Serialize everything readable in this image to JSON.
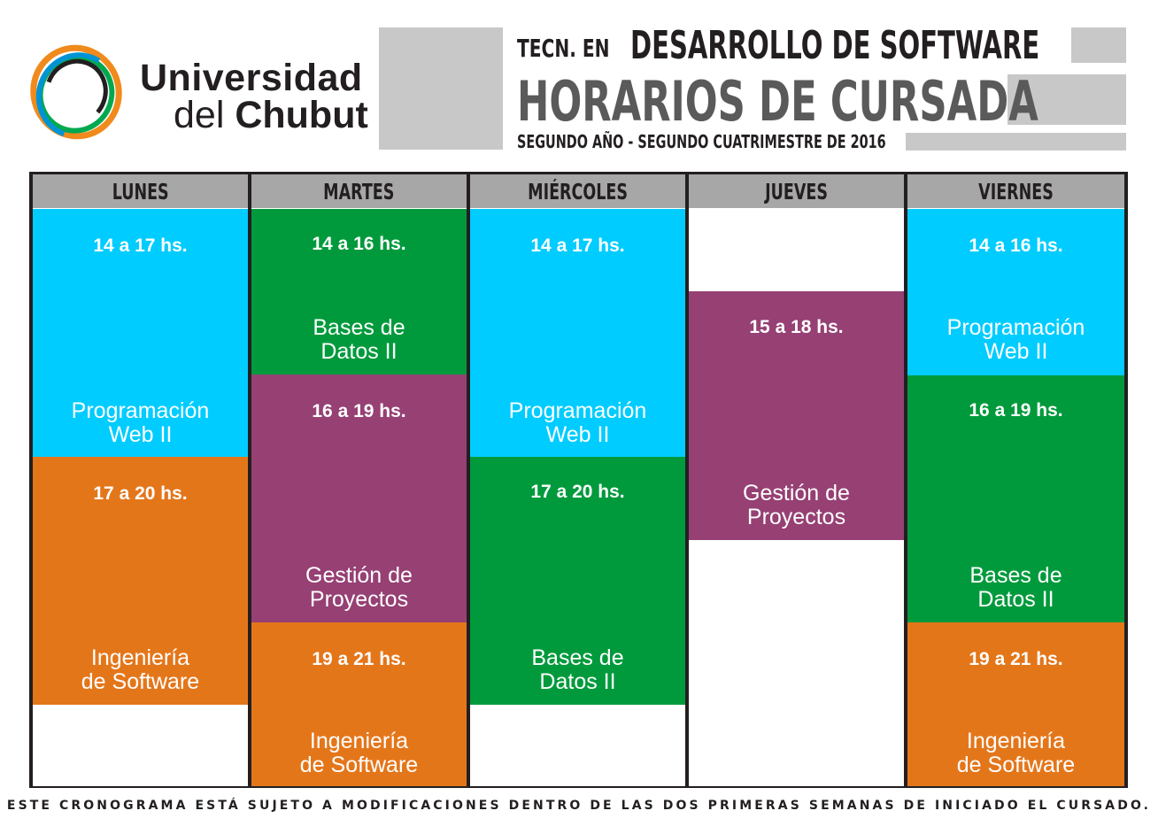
{
  "logo": {
    "line1": "Universidad",
    "line2_a": "del ",
    "line2_b": "Chubut"
  },
  "header": {
    "prefix": "TECN. EN",
    "career": "DESARROLLO DE SOFTWARE",
    "title": "HORARIOS DE CURSADA",
    "subtitle": "SEGUNDO AÑO - SEGUNDO CUATRIMESTRE DE 2016"
  },
  "colors": {
    "cyan": "#00ccff",
    "green": "#009a3c",
    "purple": "#964074",
    "orange": "#e4761a",
    "header_gray": "#a7a7a7"
  },
  "days": [
    {
      "name": "LUNES",
      "blocks": [
        {
          "time": "14 a 17 hs.",
          "subject_l1": "Programación",
          "subject_l2": "Web II",
          "color": "cyan"
        },
        {
          "time": "17 a 20 hs.",
          "subject_l1": "Ingeniería",
          "subject_l2": "de Software",
          "color": "orange"
        }
      ]
    },
    {
      "name": "MARTES",
      "blocks": [
        {
          "time": "14 a 16 hs.",
          "subject_l1": "Bases de",
          "subject_l2": "Datos II",
          "color": "green"
        },
        {
          "time": "16 a 19 hs.",
          "subject_l1": "Gestión de",
          "subject_l2": "Proyectos",
          "color": "purple"
        },
        {
          "time": "19 a 21 hs.",
          "subject_l1": "Ingeniería",
          "subject_l2": "de Software",
          "color": "orange"
        }
      ]
    },
    {
      "name": "MIÉRCOLES",
      "blocks": [
        {
          "time": "14 a 17 hs.",
          "subject_l1": "Programación",
          "subject_l2": "Web II",
          "color": "cyan"
        },
        {
          "time": "17 a 20 hs.",
          "subject_l1": "Bases de",
          "subject_l2": "Datos II",
          "color": "green"
        }
      ]
    },
    {
      "name": "JUEVES",
      "blocks": [
        {
          "time": "15 a 18 hs.",
          "subject_l1": "Gestión de",
          "subject_l2": "Proyectos",
          "color": "purple"
        }
      ]
    },
    {
      "name": "VIERNES",
      "blocks": [
        {
          "time": "14 a 16 hs.",
          "subject_l1": "Programación",
          "subject_l2": "Web II",
          "color": "cyan"
        },
        {
          "time": "16 a 19 hs.",
          "subject_l1": "Bases de",
          "subject_l2": "Datos II",
          "color": "green"
        },
        {
          "time": "19 a 21 hs.",
          "subject_l1": "Ingeniería",
          "subject_l2": "de Software",
          "color": "orange"
        }
      ]
    }
  ],
  "footer": "ESTE CRONOGRAMA ESTÁ SUJETO A MODIFICACIONES DENTRO DE LAS DOS PRIMERAS SEMANAS DE INICIADO EL CURSADO."
}
